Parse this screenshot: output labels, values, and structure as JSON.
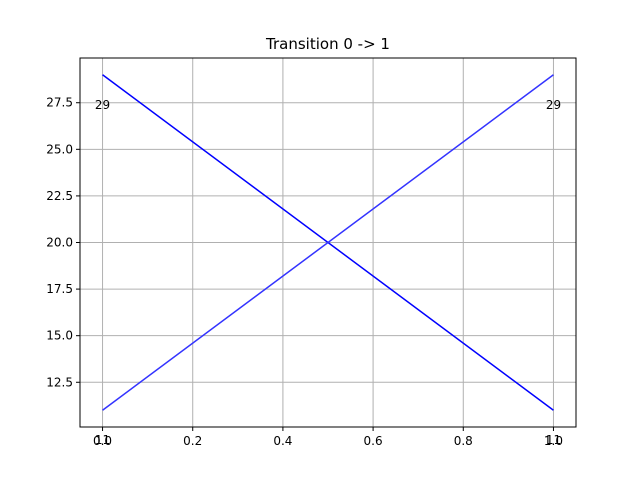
{
  "chart_data": {
    "type": "line",
    "title": "Transition 0 -> 1",
    "xlabel": "",
    "ylabel": "",
    "xlim": [
      -0.05,
      1.05
    ],
    "ylim": [
      10.1,
      29.9
    ],
    "grid": true,
    "x_ticks": [
      0.0,
      0.2,
      0.4,
      0.6,
      0.8,
      1.0
    ],
    "x_tick_labels": [
      "0.0",
      "0.2",
      "0.4",
      "0.6",
      "0.8",
      "1.0"
    ],
    "y_ticks": [
      12.5,
      15.0,
      17.5,
      20.0,
      22.5,
      25.0,
      27.5
    ],
    "y_tick_labels": [
      "12.5",
      "15.0",
      "17.5",
      "20.0",
      "22.5",
      "25.0",
      "27.5"
    ],
    "series": [
      {
        "x": [
          0.0,
          1.0
        ],
        "values": [
          29,
          11
        ],
        "color": "#0000ff"
      },
      {
        "x": [
          0.0,
          1.0
        ],
        "values": [
          11,
          29
        ],
        "color": "#3333ff"
      }
    ],
    "annotations": [
      {
        "text": "29",
        "x": 0.0,
        "y": 29,
        "anchor": "below"
      },
      {
        "text": "29",
        "x": 1.0,
        "y": 29,
        "anchor": "below"
      },
      {
        "text": "11",
        "x": 0.0,
        "y": 11,
        "anchor": "below"
      },
      {
        "text": "11",
        "x": 1.0,
        "y": 11,
        "anchor": "below"
      }
    ]
  }
}
